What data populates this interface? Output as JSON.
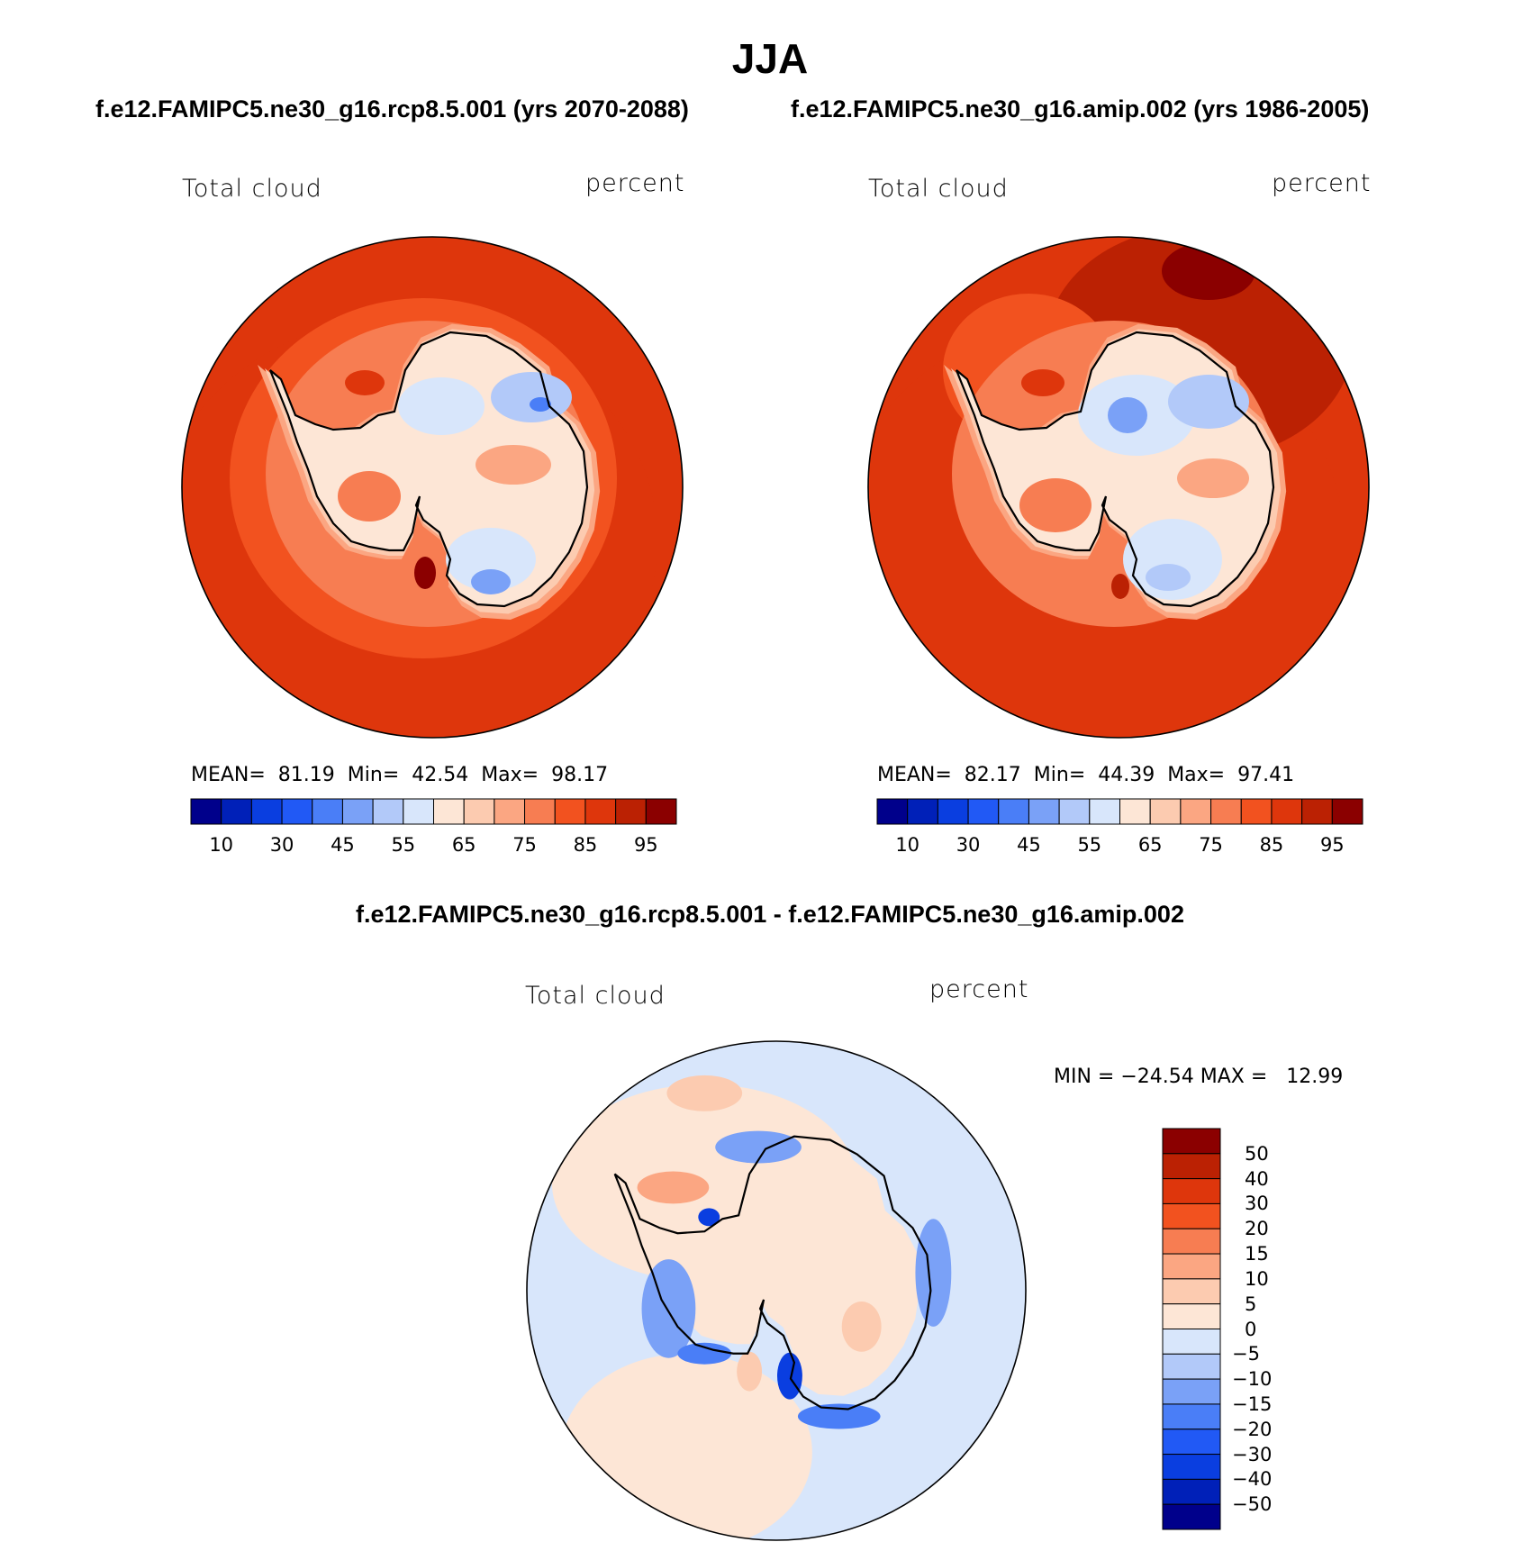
{
  "title": "JJA",
  "panels": [
    {
      "case": "f.e12.FAMIPC5.ne30_g16.rcp8.5.001 (yrs 2070-2088)",
      "left_label": "Total cloud",
      "right_label": "percent",
      "stats": "MEAN=  81.19  Min=  42.54  Max=  98.17",
      "colorbar_ticks": [
        "10",
        "30",
        "45",
        "55",
        "65",
        "75",
        "85",
        "95"
      ]
    },
    {
      "case": "f.e12.FAMIPC5.ne30_g16.amip.002 (yrs 1986-2005)",
      "left_label": "Total cloud",
      "right_label": "percent",
      "stats": "MEAN=  82.17  Min=  44.39  Max=  97.41",
      "colorbar_ticks": [
        "10",
        "30",
        "45",
        "55",
        "65",
        "75",
        "85",
        "95"
      ]
    }
  ],
  "diff_panel": {
    "title": "f.e12.FAMIPC5.ne30_g16.rcp8.5.001 - f.e12.FAMIPC5.ne30_g16.amip.002",
    "left_label": "Total cloud",
    "right_label": "percent",
    "stats": "MIN = −24.54 MAX =   12.99",
    "colorbar_ticks": [
      "50",
      "40",
      "30",
      "20",
      "15",
      "10",
      "5",
      "0",
      "−5",
      "−10",
      "−15",
      "−20",
      "−30",
      "−40",
      "−50"
    ]
  },
  "colors": {
    "abs_scale": [
      "#00008b",
      "#0020b8",
      "#0a3ee0",
      "#2159f5",
      "#4a7ef7",
      "#7aa1f7",
      "#b2c9f9",
      "#d8e6fb",
      "#fde6d6",
      "#fccbb0",
      "#fba682",
      "#f77d52",
      "#f2521f",
      "#de360c",
      "#bb2103",
      "#8b0000"
    ],
    "diff_scale": [
      "#8b0000",
      "#bb2103",
      "#de360c",
      "#f2521f",
      "#f77d52",
      "#fba682",
      "#fccbb0",
      "#fde6d6",
      "#d8e6fb",
      "#b2c9f9",
      "#7aa1f7",
      "#4a7ef7",
      "#2159f5",
      "#0a3ee0",
      "#0020b8",
      "#00008b"
    ]
  }
}
